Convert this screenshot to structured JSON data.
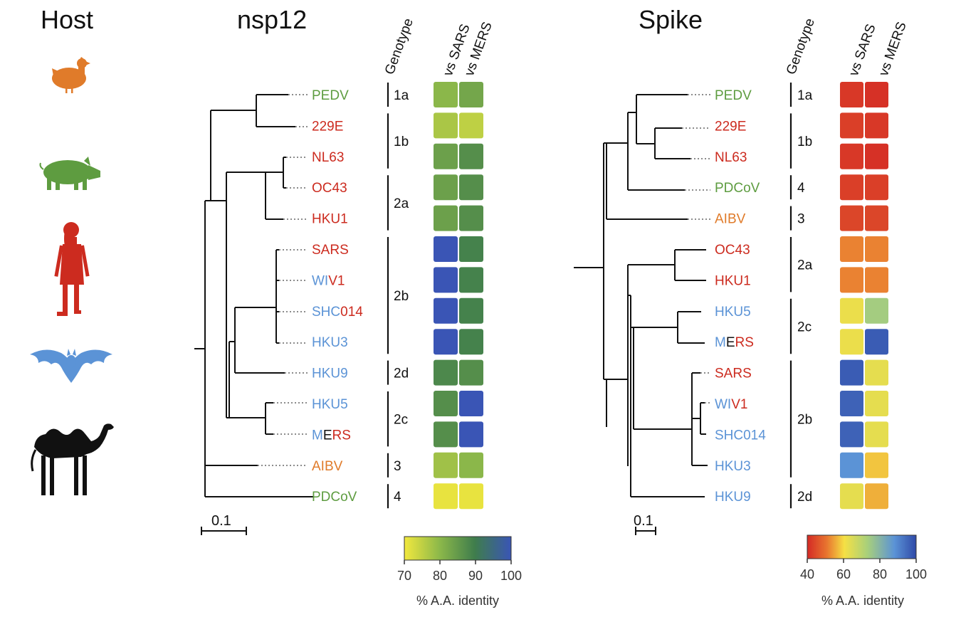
{
  "colors": {
    "avian": "#e07b2a",
    "swine": "#5e9c40",
    "human": "#cc2b1f",
    "bat": "#5b93d6",
    "camel": "#111111"
  },
  "host": {
    "title": "Host",
    "icons": [
      "chicken-icon",
      "pig-icon",
      "human-icon",
      "bat-icon",
      "camel-icon"
    ]
  },
  "panels": [
    {
      "id": "nsp12",
      "title": "nsp12",
      "scale_bar_label": "0.1",
      "column_headers": {
        "genotype": "Genotype",
        "vs_sars": "vs SARS",
        "vs_mers": "vs MERS"
      },
      "leaves": [
        {
          "parts": [
            {
              "t": "PEDV",
              "c": "swine"
            }
          ]
        },
        {
          "parts": [
            {
              "t": "229E",
              "c": "human"
            }
          ]
        },
        {
          "parts": [
            {
              "t": "NL63",
              "c": "human"
            }
          ]
        },
        {
          "parts": [
            {
              "t": "OC43",
              "c": "human"
            }
          ]
        },
        {
          "parts": [
            {
              "t": "HKU1",
              "c": "human"
            }
          ]
        },
        {
          "parts": [
            {
              "t": "SARS",
              "c": "human"
            }
          ]
        },
        {
          "parts": [
            {
              "t": "WI",
              "c": "bat"
            },
            {
              "t": "V1",
              "c": "human"
            }
          ]
        },
        {
          "parts": [
            {
              "t": "SHC",
              "c": "bat"
            },
            {
              "t": "014",
              "c": "human"
            }
          ]
        },
        {
          "parts": [
            {
              "t": "HKU3",
              "c": "bat"
            }
          ]
        },
        {
          "parts": [
            {
              "t": "HKU9",
              "c": "bat"
            }
          ]
        },
        {
          "parts": [
            {
              "t": "HKU5",
              "c": "bat"
            }
          ]
        },
        {
          "parts": [
            {
              "t": "M",
              "c": "bat"
            },
            {
              "t": "E",
              "c": "camel"
            },
            {
              "t": "RS",
              "c": "human"
            }
          ]
        },
        {
          "parts": [
            {
              "t": "AIBV",
              "c": "avian"
            }
          ]
        },
        {
          "parts": [
            {
              "t": "PDCoV",
              "c": "swine"
            }
          ]
        }
      ],
      "genotypes": [
        {
          "label": "1a",
          "from": 0,
          "to": 0
        },
        {
          "label": "1b",
          "from": 1,
          "to": 2
        },
        {
          "label": "2a",
          "from": 3,
          "to": 4
        },
        {
          "label": "2b",
          "from": 5,
          "to": 8
        },
        {
          "label": "2d",
          "from": 9,
          "to": 9
        },
        {
          "label": "2c",
          "from": 10,
          "to": 11
        },
        {
          "label": "3",
          "from": 12,
          "to": 12
        },
        {
          "label": "4",
          "from": 13,
          "to": 13
        }
      ],
      "identity_vs_sars": [
        80,
        77,
        84,
        84,
        84,
        100,
        100,
        100,
        100,
        88,
        87,
        87,
        78,
        71
      ],
      "identity_vs_mers": [
        83,
        75,
        87,
        87,
        87,
        89,
        89,
        89,
        89,
        87,
        100,
        100,
        80,
        71
      ],
      "colorbar": {
        "ticks": [
          "70",
          "80",
          "90",
          "100"
        ],
        "min": 70,
        "max": 100,
        "label": "% A.A. identity"
      }
    },
    {
      "id": "spike",
      "title": "Spike",
      "scale_bar_label": "0.1",
      "column_headers": {
        "genotype": "Genotype",
        "vs_sars": "vs SARS",
        "vs_mers": "vs MERS"
      },
      "leaves": [
        {
          "parts": [
            {
              "t": "PEDV",
              "c": "swine"
            }
          ]
        },
        {
          "parts": [
            {
              "t": "229E",
              "c": "human"
            }
          ]
        },
        {
          "parts": [
            {
              "t": "NL63",
              "c": "human"
            }
          ]
        },
        {
          "parts": [
            {
              "t": "PDCoV",
              "c": "swine"
            }
          ]
        },
        {
          "parts": [
            {
              "t": "AIBV",
              "c": "avian"
            }
          ]
        },
        {
          "parts": [
            {
              "t": "OC43",
              "c": "human"
            }
          ]
        },
        {
          "parts": [
            {
              "t": "HKU1",
              "c": "human"
            }
          ]
        },
        {
          "parts": [
            {
              "t": "HKU5",
              "c": "bat"
            }
          ]
        },
        {
          "parts": [
            {
              "t": "M",
              "c": "bat"
            },
            {
              "t": "E",
              "c": "camel"
            },
            {
              "t": "RS",
              "c": "human"
            }
          ]
        },
        {
          "parts": [
            {
              "t": "SARS",
              "c": "human"
            }
          ]
        },
        {
          "parts": [
            {
              "t": "WI",
              "c": "bat"
            },
            {
              "t": "V1",
              "c": "human"
            }
          ]
        },
        {
          "parts": [
            {
              "t": "SHC014",
              "c": "bat"
            }
          ]
        },
        {
          "parts": [
            {
              "t": "HKU3",
              "c": "bat"
            }
          ]
        },
        {
          "parts": [
            {
              "t": "HKU9",
              "c": "bat"
            }
          ]
        }
      ],
      "genotypes": [
        {
          "label": "1a",
          "from": 0,
          "to": 0
        },
        {
          "label": "1b",
          "from": 1,
          "to": 2
        },
        {
          "label": "4",
          "from": 3,
          "to": 3
        },
        {
          "label": "3",
          "from": 4,
          "to": 4
        },
        {
          "label": "2a",
          "from": 5,
          "to": 6
        },
        {
          "label": "2c",
          "from": 7,
          "to": 8
        },
        {
          "label": "2b",
          "from": 9,
          "to": 12
        },
        {
          "label": "2d",
          "from": 13,
          "to": 13
        }
      ],
      "identity_vs_sars": [
        42,
        43,
        42,
        43,
        44,
        52,
        52,
        62,
        62,
        97,
        96,
        96,
        88,
        63
      ],
      "identity_vs_mers": [
        41,
        42,
        41,
        43,
        44,
        52,
        52,
        74,
        97,
        63,
        63,
        63,
        58,
        56
      ],
      "colorbar": {
        "ticks": [
          "40",
          "60",
          "80",
          "100"
        ],
        "min": 40,
        "max": 100,
        "label": "% A.A. identity"
      }
    }
  ]
}
